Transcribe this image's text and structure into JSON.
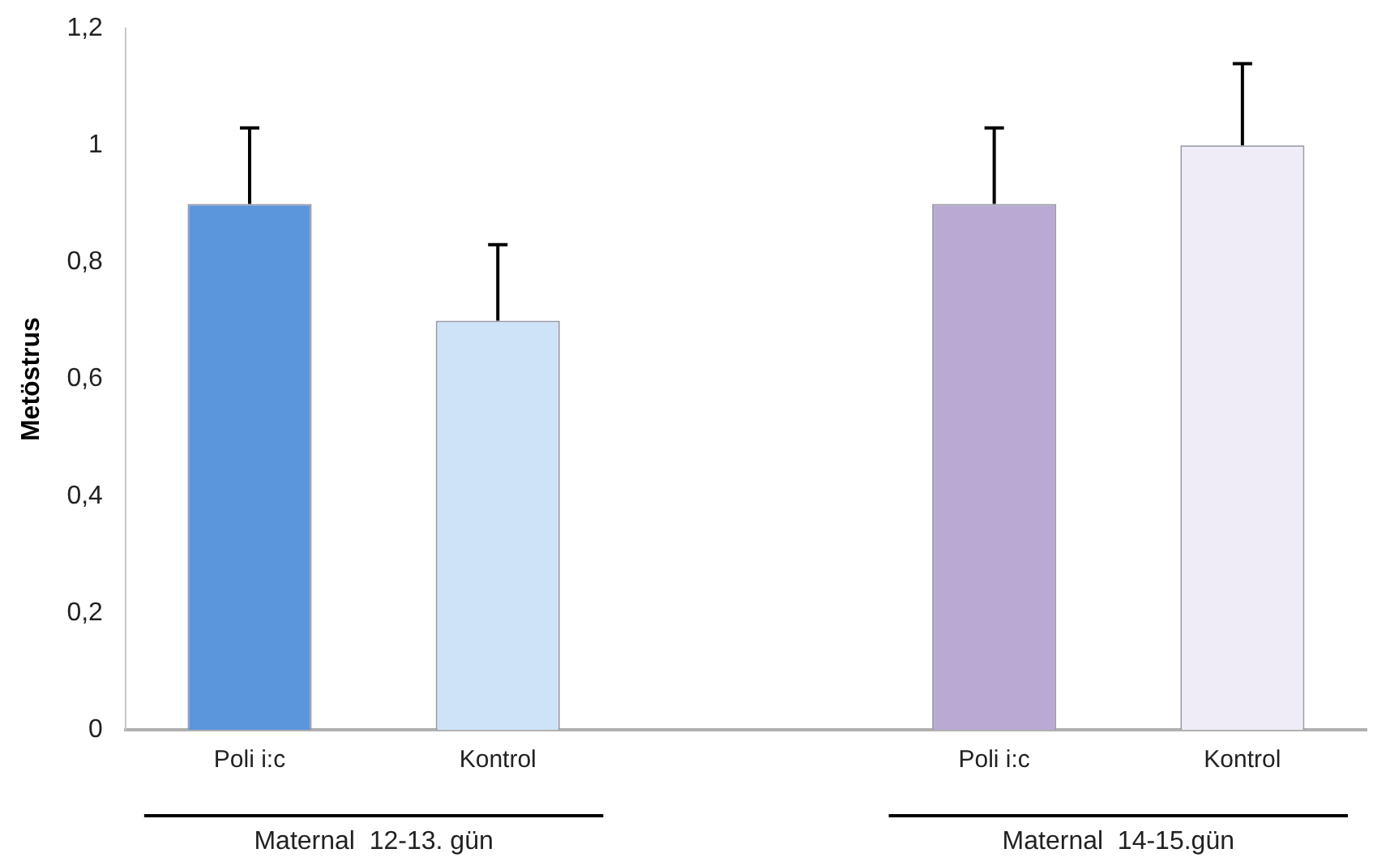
{
  "chart_data": {
    "type": "bar",
    "ylabel": "Metöstrus",
    "categories": [
      "Poli i:c",
      "Kontrol",
      null,
      "Poli i:c",
      "Kontrol"
    ],
    "values": [
      0.9,
      0.7,
      null,
      0.9,
      1.0
    ],
    "colors": [
      "#5b95dc",
      "#cfe3f8",
      null,
      "#b9aad4",
      "#f0ecf7"
    ],
    "errors": [
      [
        0.9,
        1.03
      ],
      [
        0.7,
        0.83
      ],
      null,
      [
        0.9,
        1.03
      ],
      [
        1.0,
        1.14
      ]
    ],
    "ylim": [
      0,
      1.2
    ],
    "yticks": [
      0,
      {
        "value": 0.2,
        "label": "0,2"
      },
      {
        "value": 0.4,
        "label": "0,4"
      },
      {
        "value": 0.6,
        "label": "0,6"
      },
      {
        "value": 0.8,
        "label": "0,8"
      },
      1,
      {
        "value": 1.2,
        "label": "1,2"
      }
    ],
    "annotations": [
      "Maternal  12-13. gün",
      "Maternal  14-15.gün"
    ],
    "grid": false,
    "legend": false
  }
}
